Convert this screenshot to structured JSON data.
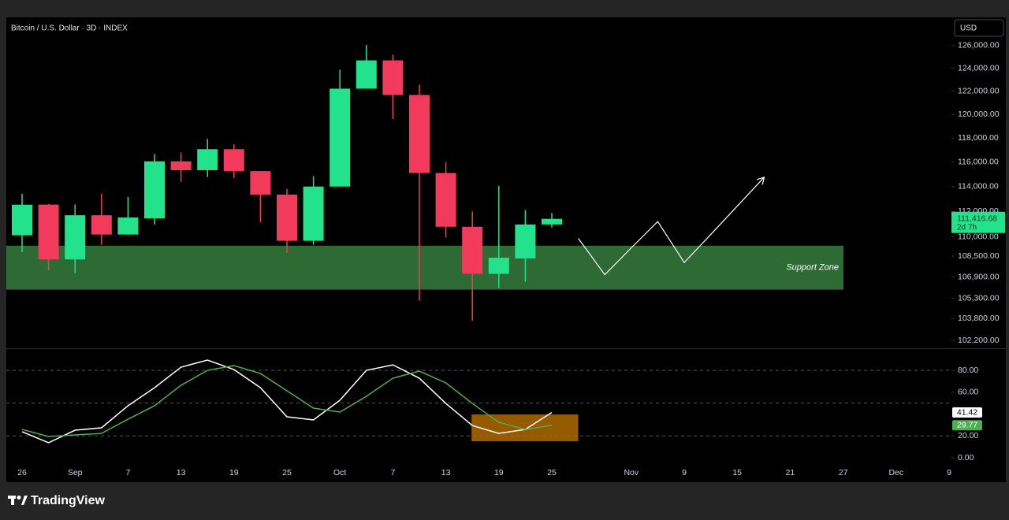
{
  "title": "Bitcoin / U.S. Dollar · 3D · INDEX",
  "currency": "USD",
  "brand": "TradingView",
  "chart_data": [
    {
      "type": "candlestick",
      "categories": [
        "26",
        null,
        "Sep",
        null,
        "7",
        null,
        "13",
        null,
        "19",
        null,
        "25",
        null,
        "Oct",
        null,
        "7",
        null,
        "13",
        null,
        "19",
        null,
        "25",
        null,
        null,
        "Nov",
        null,
        "9",
        null,
        "15",
        null,
        "21",
        null,
        "27",
        null,
        "Dec",
        null,
        "9"
      ],
      "open": [
        110120,
        112550,
        108250,
        111700,
        110180,
        111450,
        116060,
        115330,
        117070,
        115260,
        113350,
        109690,
        114000,
        122210,
        124690,
        121660,
        115100,
        110790,
        107150,
        108320,
        110970,
        null,
        null,
        null,
        null,
        null,
        null,
        null,
        null,
        null,
        null,
        null,
        null,
        null,
        null,
        null
      ],
      "high": [
        113410,
        112600,
        112560,
        113420,
        113160,
        116660,
        116800,
        117930,
        117470,
        115260,
        113810,
        114840,
        123860,
        126070,
        125200,
        122550,
        116000,
        112000,
        114060,
        112120,
        111880,
        null,
        null,
        null,
        null,
        null,
        null,
        null,
        null,
        null,
        null,
        null,
        null,
        null,
        null,
        null
      ],
      "low": [
        108820,
        107400,
        107200,
        109380,
        110150,
        110970,
        114390,
        114770,
        114710,
        111150,
        108750,
        109380,
        114000,
        122210,
        119610,
        105130,
        109940,
        103630,
        106070,
        106540,
        110730,
        null,
        null,
        null,
        null,
        null,
        null,
        null,
        null,
        null,
        null,
        null,
        null,
        null,
        null,
        null
      ],
      "close": [
        112540,
        108250,
        111700,
        110180,
        111520,
        116060,
        115330,
        117070,
        115260,
        113350,
        109690,
        114000,
        122210,
        124690,
        121660,
        115100,
        110790,
        107150,
        108380,
        110970,
        111416.68,
        null,
        null,
        null,
        null,
        null,
        null,
        null,
        null,
        null,
        null,
        null,
        null,
        null,
        null,
        null
      ],
      "up_color": "#22e28b",
      "down_color": "#f23b5c",
      "log_scale": true,
      "ylim": [
        101630,
        128560
      ],
      "yticks": [
        {
          "value": 126000,
          "label": "126,000.00"
        },
        {
          "value": 124000,
          "label": "124,000.00"
        },
        {
          "value": 122000,
          "label": "122,000.00"
        },
        {
          "value": 120000,
          "label": "120,000.00"
        },
        {
          "value": 118000,
          "label": "118,000.00"
        },
        {
          "value": 116000,
          "label": "116,000.00"
        },
        {
          "value": 114000,
          "label": "114,000.00"
        },
        {
          "value": 112000,
          "label": "112,000.00"
        },
        {
          "value": 110000,
          "label": "110,000.00"
        },
        {
          "value": 108500,
          "label": "108,500.00"
        },
        {
          "value": 106900,
          "label": "106,900.00"
        },
        {
          "value": 105300,
          "label": "105,300.00"
        },
        {
          "value": 103800,
          "label": "103,800.00"
        },
        {
          "value": 102200,
          "label": "102,200.00"
        }
      ],
      "price_label": {
        "value": 111416.68,
        "label": "111,416.68"
      },
      "countdown": "2d 7h",
      "zones": [
        {
          "label": "Support Zone",
          "ylim": [
            105950,
            109310
          ],
          "color": "#2d6a34"
        }
      ],
      "projection": {
        "color": "#ffffff",
        "values": [
          null,
          null,
          null,
          null,
          null,
          null,
          null,
          null,
          null,
          null,
          null,
          null,
          null,
          null,
          null,
          null,
          null,
          null,
          null,
          null,
          null,
          109880,
          107080,
          109140,
          111200,
          108010,
          110180,
          112420,
          114710,
          null,
          null,
          null,
          null,
          null,
          null,
          null
        ]
      }
    },
    {
      "type": "line",
      "ylim": [
        -6.5,
        99.5
      ],
      "yticks": [
        {
          "value": 80,
          "label": "80.00"
        },
        {
          "value": 60,
          "label": "60.00"
        },
        {
          "value": 20,
          "label": "20.00"
        },
        {
          "value": 0,
          "label": "0.00"
        }
      ],
      "bands": [
        80,
        50,
        20
      ],
      "highlight": {
        "ylim": [
          15.1,
          39.6
        ],
        "color": "#b06a00"
      },
      "series": [
        {
          "color": "#ffffff",
          "last_label": "41.42",
          "values": [
            23.8,
            13.7,
            25.2,
            27.4,
            47.6,
            64.1,
            82.9,
            89.4,
            80.7,
            64.1,
            37.5,
            34.6,
            52.6,
            80.0,
            85.0,
            72.8,
            49.7,
            29.5,
            22.3,
            25.9,
            41.42
          ]
        },
        {
          "color": "#4caf50",
          "last_label": "29.77",
          "values": [
            25.9,
            19.5,
            20.9,
            22.3,
            35.3,
            47.6,
            66.3,
            80.0,
            84.3,
            77.1,
            61.3,
            45.4,
            41.8,
            56.2,
            72.8,
            79.3,
            68.5,
            49.7,
            32.4,
            25.9,
            29.77
          ]
        }
      ]
    }
  ]
}
